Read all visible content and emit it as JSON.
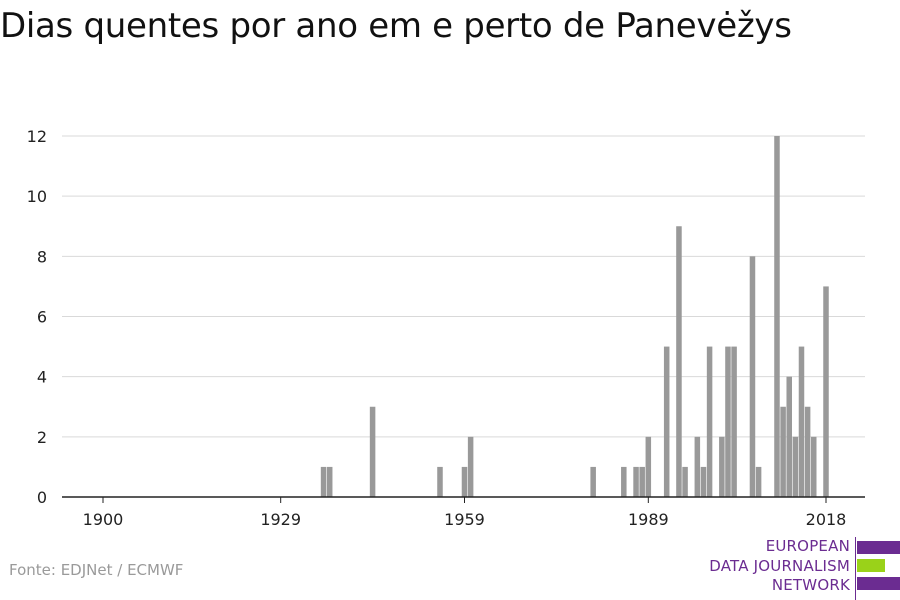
{
  "title": "Dias quentes por ano em e perto de Panevėžys",
  "source": "Fonte: EDJNet / ECMWF",
  "logo": {
    "lines": [
      "EUROPEAN",
      "DATA JOURNALISM",
      "NETWORK"
    ],
    "colors": {
      "purple": "#6b2c91",
      "green": "#9ad219"
    }
  },
  "colors": {
    "bar": "#999999",
    "grid": "#d9d9d9",
    "axis": "#222222",
    "text": "#222222"
  },
  "chart_data": {
    "type": "bar",
    "title": "Dias quentes por ano em e perto de Panevėžys",
    "xlabel": "",
    "ylabel": "",
    "xlim": [
      1900,
      2018
    ],
    "ylim": [
      0,
      12
    ],
    "x_ticks": [
      "1900",
      "1929",
      "1959",
      "1989",
      "2018"
    ],
    "y_ticks": [
      "0",
      "2",
      "4",
      "6",
      "8",
      "10",
      "12"
    ],
    "grid": true,
    "points": [
      {
        "year": 1936,
        "value": 1
      },
      {
        "year": 1937,
        "value": 1
      },
      {
        "year": 1944,
        "value": 3
      },
      {
        "year": 1955,
        "value": 1
      },
      {
        "year": 1959,
        "value": 1
      },
      {
        "year": 1960,
        "value": 2
      },
      {
        "year": 1980,
        "value": 1
      },
      {
        "year": 1985,
        "value": 1
      },
      {
        "year": 1987,
        "value": 1
      },
      {
        "year": 1988,
        "value": 1
      },
      {
        "year": 1989,
        "value": 2
      },
      {
        "year": 1992,
        "value": 5
      },
      {
        "year": 1994,
        "value": 9
      },
      {
        "year": 1995,
        "value": 1
      },
      {
        "year": 1997,
        "value": 2
      },
      {
        "year": 1998,
        "value": 1
      },
      {
        "year": 1999,
        "value": 5
      },
      {
        "year": 2001,
        "value": 2
      },
      {
        "year": 2002,
        "value": 5
      },
      {
        "year": 2003,
        "value": 5
      },
      {
        "year": 2006,
        "value": 8
      },
      {
        "year": 2007,
        "value": 1
      },
      {
        "year": 2010,
        "value": 12
      },
      {
        "year": 2011,
        "value": 3
      },
      {
        "year": 2012,
        "value": 4
      },
      {
        "year": 2013,
        "value": 2
      },
      {
        "year": 2014,
        "value": 5
      },
      {
        "year": 2015,
        "value": 3
      },
      {
        "year": 2016,
        "value": 2
      },
      {
        "year": 2018,
        "value": 7
      }
    ]
  }
}
